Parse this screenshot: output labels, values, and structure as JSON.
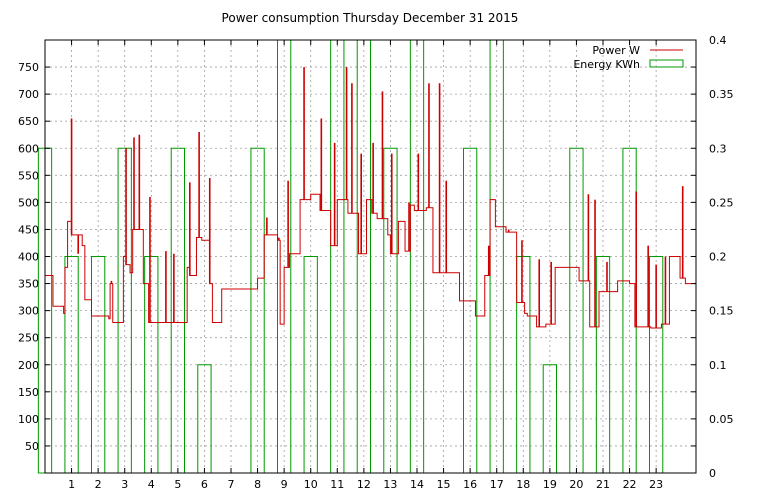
{
  "chart_data": {
    "type": "line",
    "title": "Power consumption Thursday December 31 2015",
    "xlabel": "",
    "ylabel": "",
    "y2label": "",
    "xlim": [
      0,
      24.5
    ],
    "ylim": [
      0,
      800
    ],
    "y2lim": [
      0,
      0.4
    ],
    "xticks": [
      1,
      2,
      3,
      4,
      5,
      6,
      7,
      8,
      9,
      10,
      11,
      12,
      13,
      14,
      15,
      16,
      17,
      18,
      19,
      20,
      21,
      22,
      23
    ],
    "xtick_labels": [
      "1",
      "2",
      "3",
      "4",
      "5",
      "6",
      "7",
      "8",
      "9",
      "10",
      "11",
      "12",
      "13",
      "14",
      "15",
      "16",
      "17",
      "18",
      "19",
      "20",
      "21",
      "22",
      "23"
    ],
    "yticks": [
      50,
      100,
      150,
      200,
      250,
      300,
      350,
      400,
      450,
      500,
      550,
      600,
      650,
      700,
      750
    ],
    "ytick_labels": [
      "50",
      "100",
      "150",
      "200",
      "250",
      "300",
      "350",
      "400",
      "450",
      "500",
      "550",
      "600",
      "650",
      "700",
      "750"
    ],
    "y2ticks": [
      0,
      0.05,
      0.1,
      0.15,
      0.2,
      0.25,
      0.3,
      0.35,
      0.4
    ],
    "y2tick_labels": [
      "0",
      "0.05",
      "0.1",
      "0.15",
      "0.2",
      "0.25",
      "0.3",
      "0.35",
      "0.4"
    ],
    "grid": true,
    "legend_position": "top-right",
    "series": [
      {
        "name": "Power W",
        "style": "step-line",
        "axis": "left",
        "color": "#cc0000",
        "points": [
          [
            0,
            365
          ],
          [
            0.3,
            308
          ],
          [
            0.7,
            295
          ],
          [
            0.75,
            380
          ],
          [
            0.85,
            465
          ],
          [
            1.0,
            440
          ],
          [
            1.4,
            420
          ],
          [
            1.5,
            320
          ],
          [
            1.75,
            290
          ],
          [
            2.4,
            285
          ],
          [
            2.45,
            350
          ],
          [
            2.55,
            278
          ],
          [
            2.9,
            278
          ],
          [
            2.95,
            400
          ],
          [
            3.05,
            385
          ],
          [
            3.2,
            370
          ],
          [
            3.3,
            450
          ],
          [
            3.7,
            350
          ],
          [
            3.9,
            278
          ],
          [
            4.3,
            278
          ],
          [
            4.5,
            278
          ],
          [
            4.8,
            278
          ],
          [
            5.0,
            278
          ],
          [
            5.35,
            380
          ],
          [
            5.45,
            365
          ],
          [
            5.7,
            435
          ],
          [
            5.9,
            430
          ],
          [
            6.2,
            350
          ],
          [
            6.3,
            278
          ],
          [
            6.65,
            340
          ],
          [
            7.8,
            340
          ],
          [
            8.0,
            360
          ],
          [
            8.25,
            440
          ],
          [
            8.75,
            430
          ],
          [
            8.85,
            275
          ],
          [
            9.0,
            380
          ],
          [
            9.2,
            405
          ],
          [
            9.6,
            505
          ],
          [
            10.0,
            515
          ],
          [
            10.35,
            485
          ],
          [
            10.75,
            420
          ],
          [
            11.0,
            505
          ],
          [
            11.4,
            480
          ],
          [
            11.8,
            405
          ],
          [
            12.1,
            505
          ],
          [
            12.3,
            480
          ],
          [
            12.5,
            470
          ],
          [
            12.9,
            440
          ],
          [
            13.0,
            405
          ],
          [
            13.3,
            465
          ],
          [
            13.55,
            410
          ],
          [
            13.75,
            495
          ],
          [
            13.9,
            485
          ],
          [
            14.35,
            490
          ],
          [
            14.6,
            370
          ],
          [
            15.6,
            318
          ],
          [
            16.2,
            290
          ],
          [
            16.55,
            365
          ],
          [
            16.75,
            505
          ],
          [
            16.95,
            455
          ],
          [
            17.35,
            445
          ],
          [
            17.75,
            315
          ],
          [
            18.05,
            295
          ],
          [
            18.15,
            290
          ],
          [
            18.5,
            270
          ],
          [
            18.85,
            275
          ],
          [
            19.2,
            380
          ],
          [
            20.1,
            355
          ],
          [
            20.5,
            270
          ],
          [
            20.85,
            335
          ],
          [
            21.55,
            355
          ],
          [
            22.0,
            350
          ],
          [
            22.2,
            270
          ],
          [
            22.8,
            268
          ],
          [
            23.2,
            275
          ],
          [
            23.5,
            400
          ],
          [
            23.9,
            360
          ],
          [
            24.1,
            350
          ]
        ],
        "spikes": [
          [
            1.0,
            655
          ],
          [
            1.25,
            405
          ],
          [
            2.5,
            355
          ],
          [
            3.05,
            600
          ],
          [
            3.35,
            620
          ],
          [
            3.55,
            625
          ],
          [
            3.95,
            510
          ],
          [
            4.55,
            410
          ],
          [
            4.85,
            405
          ],
          [
            5.45,
            537
          ],
          [
            5.8,
            630
          ],
          [
            6.2,
            545
          ],
          [
            8.35,
            472
          ],
          [
            8.8,
            435
          ],
          [
            9.15,
            540
          ],
          [
            9.75,
            750
          ],
          [
            10.4,
            655
          ],
          [
            10.9,
            610
          ],
          [
            11.35,
            750
          ],
          [
            11.55,
            720
          ],
          [
            11.9,
            590
          ],
          [
            12.35,
            610
          ],
          [
            12.7,
            705
          ],
          [
            13.05,
            590
          ],
          [
            13.7,
            500
          ],
          [
            14.05,
            590
          ],
          [
            14.45,
            720
          ],
          [
            14.85,
            720
          ],
          [
            15.1,
            540
          ],
          [
            16.7,
            420
          ],
          [
            17.45,
            450
          ],
          [
            17.95,
            430
          ],
          [
            18.6,
            395
          ],
          [
            19.05,
            390
          ],
          [
            20.45,
            515
          ],
          [
            20.7,
            505
          ],
          [
            21.15,
            390
          ],
          [
            22.25,
            520
          ],
          [
            22.7,
            420
          ],
          [
            23.0,
            385
          ],
          [
            23.35,
            400
          ],
          [
            24.0,
            530
          ]
        ]
      },
      {
        "name": "Energy KWh",
        "style": "bar-outline",
        "axis": "right",
        "color": "#009900",
        "bars": [
          [
            0,
            0.3
          ],
          [
            1,
            0.2
          ],
          [
            2,
            0.2
          ],
          [
            3,
            0.3
          ],
          [
            4,
            0.2
          ],
          [
            5,
            0.3
          ],
          [
            6,
            0.1
          ],
          [
            7,
            0
          ],
          [
            8,
            0.3
          ],
          [
            9,
            0.4
          ],
          [
            10,
            0.2
          ],
          [
            11,
            0.4
          ],
          [
            12,
            0.4
          ],
          [
            13,
            0.3
          ],
          [
            14,
            0.4
          ],
          [
            15,
            0
          ],
          [
            16,
            0.3
          ],
          [
            17,
            0.4
          ],
          [
            18,
            0.2
          ],
          [
            19,
            0.1
          ],
          [
            20,
            0.3
          ],
          [
            21,
            0.2
          ],
          [
            22,
            0.3
          ],
          [
            23,
            0.2
          ]
        ]
      }
    ]
  }
}
